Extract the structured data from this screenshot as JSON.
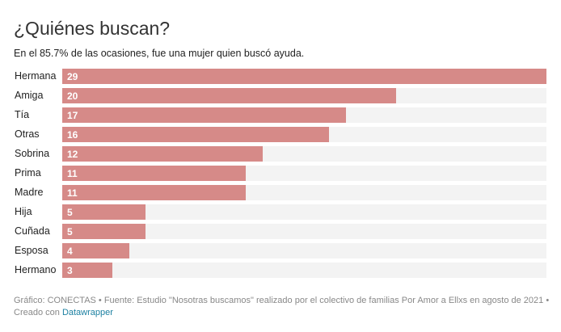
{
  "chart_data": {
    "type": "bar",
    "orientation": "horizontal",
    "title": "¿Quiénes buscan?",
    "subtitle": "En el 85.7% de las ocasiones, fue una mujer quien buscó ayuda.",
    "categories": [
      "Hermana",
      "Amiga",
      "Tía",
      "Otras",
      "Sobrina",
      "Prima",
      "Madre",
      "Hija",
      "Cuñada",
      "Esposa",
      "Hermano"
    ],
    "values": [
      29,
      20,
      17,
      16,
      12,
      11,
      11,
      5,
      5,
      4,
      3
    ],
    "xlim": [
      0,
      29
    ],
    "grid": false,
    "bar_color": "#d68a88",
    "track_color": "#f3f3f3"
  },
  "footer": {
    "text": "Gráfico: CONECTAS • Fuente: Estudio \"Nosotras buscamos\" realizado por el colectivo de familias Por Amor a Ellxs en agosto de 2021 • Creado con",
    "link": "Datawrapper"
  }
}
